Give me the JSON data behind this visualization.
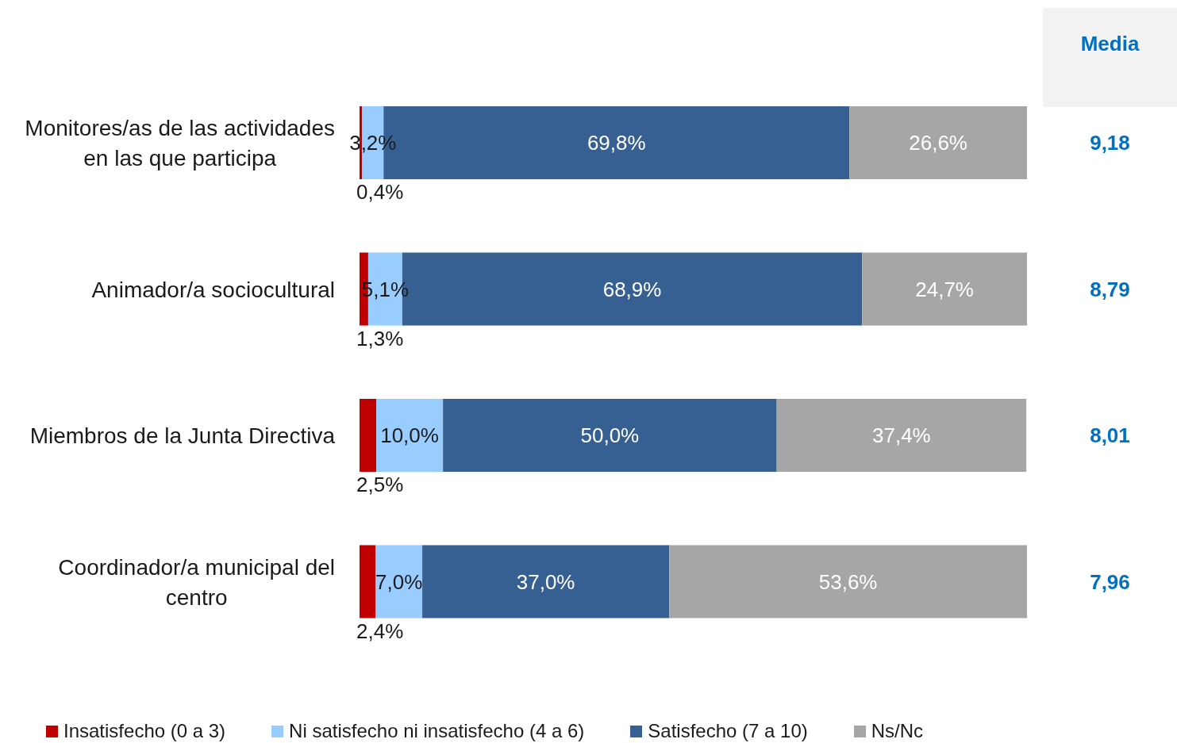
{
  "chart_data": {
    "type": "bar",
    "orientation": "horizontal",
    "stacked": true,
    "categories": [
      "Monitores/as de las actividades en las que participa",
      "Animador/a sociocultural",
      "Miembros de la Junta Directiva",
      "Coordinador/a municipal del centro"
    ],
    "series": [
      {
        "name": "Insatisfecho (0 a 3)",
        "color": "#c00000",
        "values": [
          0.4,
          1.3,
          2.5,
          2.4
        ],
        "value_labels": [
          "0,4%",
          "1,3%",
          "2,5%",
          "2,4%"
        ]
      },
      {
        "name": "Ni satisfecho ni insatisfecho (4 a 6)",
        "color": "#99ccff",
        "values": [
          3.2,
          5.1,
          10.0,
          7.0
        ],
        "value_labels": [
          "3,2%",
          "5,1%",
          "10,0%",
          "7,0%"
        ]
      },
      {
        "name": "Satisfecho (7 a 10)",
        "color": "#376092",
        "values": [
          69.8,
          68.9,
          50.0,
          37.0
        ],
        "value_labels": [
          "69,8%",
          "68,9%",
          "50,0%",
          "37,0%"
        ]
      },
      {
        "name": "Ns/Nc",
        "color": "#a6a6a6",
        "values": [
          26.6,
          24.7,
          37.4,
          53.6
        ],
        "value_labels": [
          "26,6%",
          "24,7%",
          "37,4%",
          "53,6%"
        ]
      }
    ],
    "xlim": [
      0,
      100
    ],
    "tick_labels": "y",
    "legend": "bottom",
    "annotations": [
      "Media",
      "9,18",
      "8,79",
      "8,01",
      "7,96"
    ]
  }
}
